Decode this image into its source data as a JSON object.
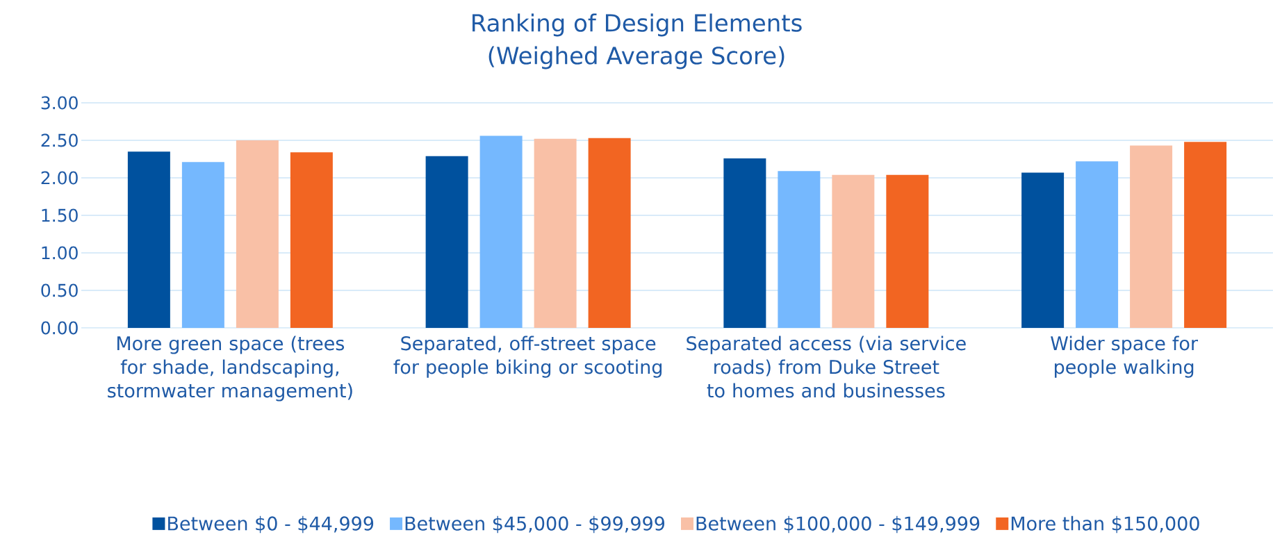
{
  "chart_data": {
    "type": "bar",
    "title": "Ranking of Design Elements",
    "subtitle": "(Weighed Average Score)",
    "categories": [
      "More green space (trees for shade, landscaping, stormwater management)",
      "Separated, off-street space for people biking or scooting",
      "Separated access (via service roads) from Duke Street to homes and businesses",
      "Wider space for people walking"
    ],
    "series": [
      {
        "name": "Between $0 - $44,999",
        "color": "#00519e",
        "values": [
          2.35,
          2.29,
          2.26,
          2.07
        ]
      },
      {
        "name": "Between $45,000 - $99,999",
        "color": "#75b8fe",
        "values": [
          2.21,
          2.56,
          2.09,
          2.22
        ]
      },
      {
        "name": "Between $100,000 - $149,999",
        "color": "#f9c0a6",
        "values": [
          2.5,
          2.52,
          2.04,
          2.43
        ]
      },
      {
        "name": "More than $150,000",
        "color": "#f26522",
        "values": [
          2.34,
          2.53,
          2.04,
          2.48
        ]
      }
    ],
    "ylim": [
      0,
      3
    ],
    "yticks": [
      {
        "value": 0,
        "label": "0.00"
      },
      {
        "value": 0.5,
        "label": "0.50"
      },
      {
        "value": 1,
        "label": "1.00"
      },
      {
        "value": 1.5,
        "label": "1.50"
      },
      {
        "value": 2,
        "label": "2.00"
      },
      {
        "value": 2.5,
        "label": "2.50"
      },
      {
        "value": 3,
        "label": "3.00"
      }
    ],
    "grid": "y",
    "legend": "bottom"
  }
}
